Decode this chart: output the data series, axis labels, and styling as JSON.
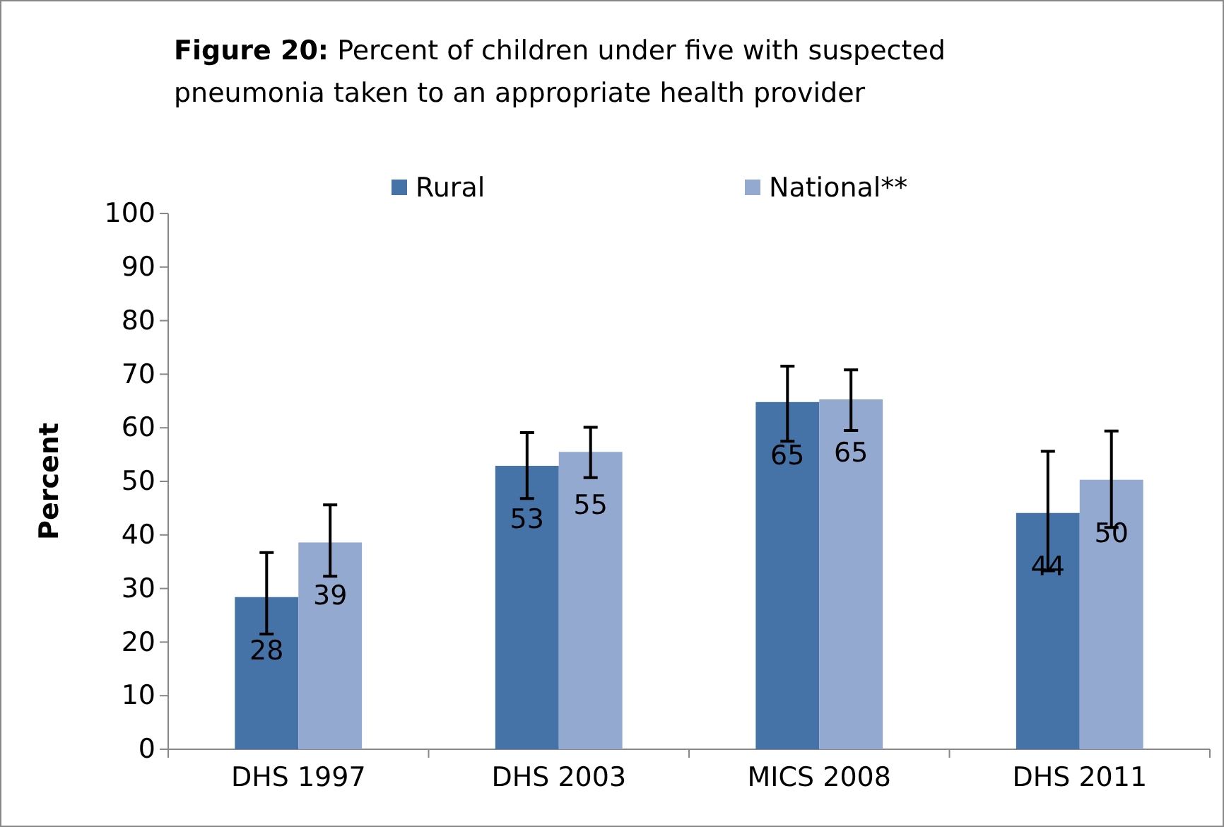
{
  "chart_data": {
    "type": "bar",
    "title": "Figure 20: Percent of children under five with suspected pneumonia taken to an appropriate health provider",
    "ylabel": "Percent",
    "categories": [
      "DHS 1997",
      "DHS 2003",
      "MICS 2008",
      "DHS 2011"
    ],
    "series": [
      {
        "name": "Rural",
        "color": "#4572a7",
        "values": [
          28.4,
          52.9,
          64.8,
          44.1
        ],
        "value_labels": [
          "28",
          "53",
          "65",
          "44"
        ],
        "errors": [
          [
            21.5,
            36.7
          ],
          [
            46.8,
            59.1
          ],
          [
            57.5,
            71.5
          ],
          [
            33.3,
            55.6
          ]
        ]
      },
      {
        "name": "National**",
        "color": "#93a9d0",
        "values": [
          38.6,
          55.5,
          65.3,
          50.3
        ],
        "value_labels": [
          "39",
          "55",
          "65",
          "50"
        ],
        "errors": [
          [
            32.3,
            45.6
          ],
          [
            50.7,
            60.1
          ],
          [
            59.5,
            70.8
          ],
          [
            41.4,
            59.4
          ]
        ]
      }
    ],
    "ylim": [
      0,
      100
    ],
    "yticks": [
      0,
      10,
      20,
      30,
      40,
      50,
      60,
      70,
      80,
      90,
      100
    ],
    "grid": false,
    "legend": "top"
  }
}
